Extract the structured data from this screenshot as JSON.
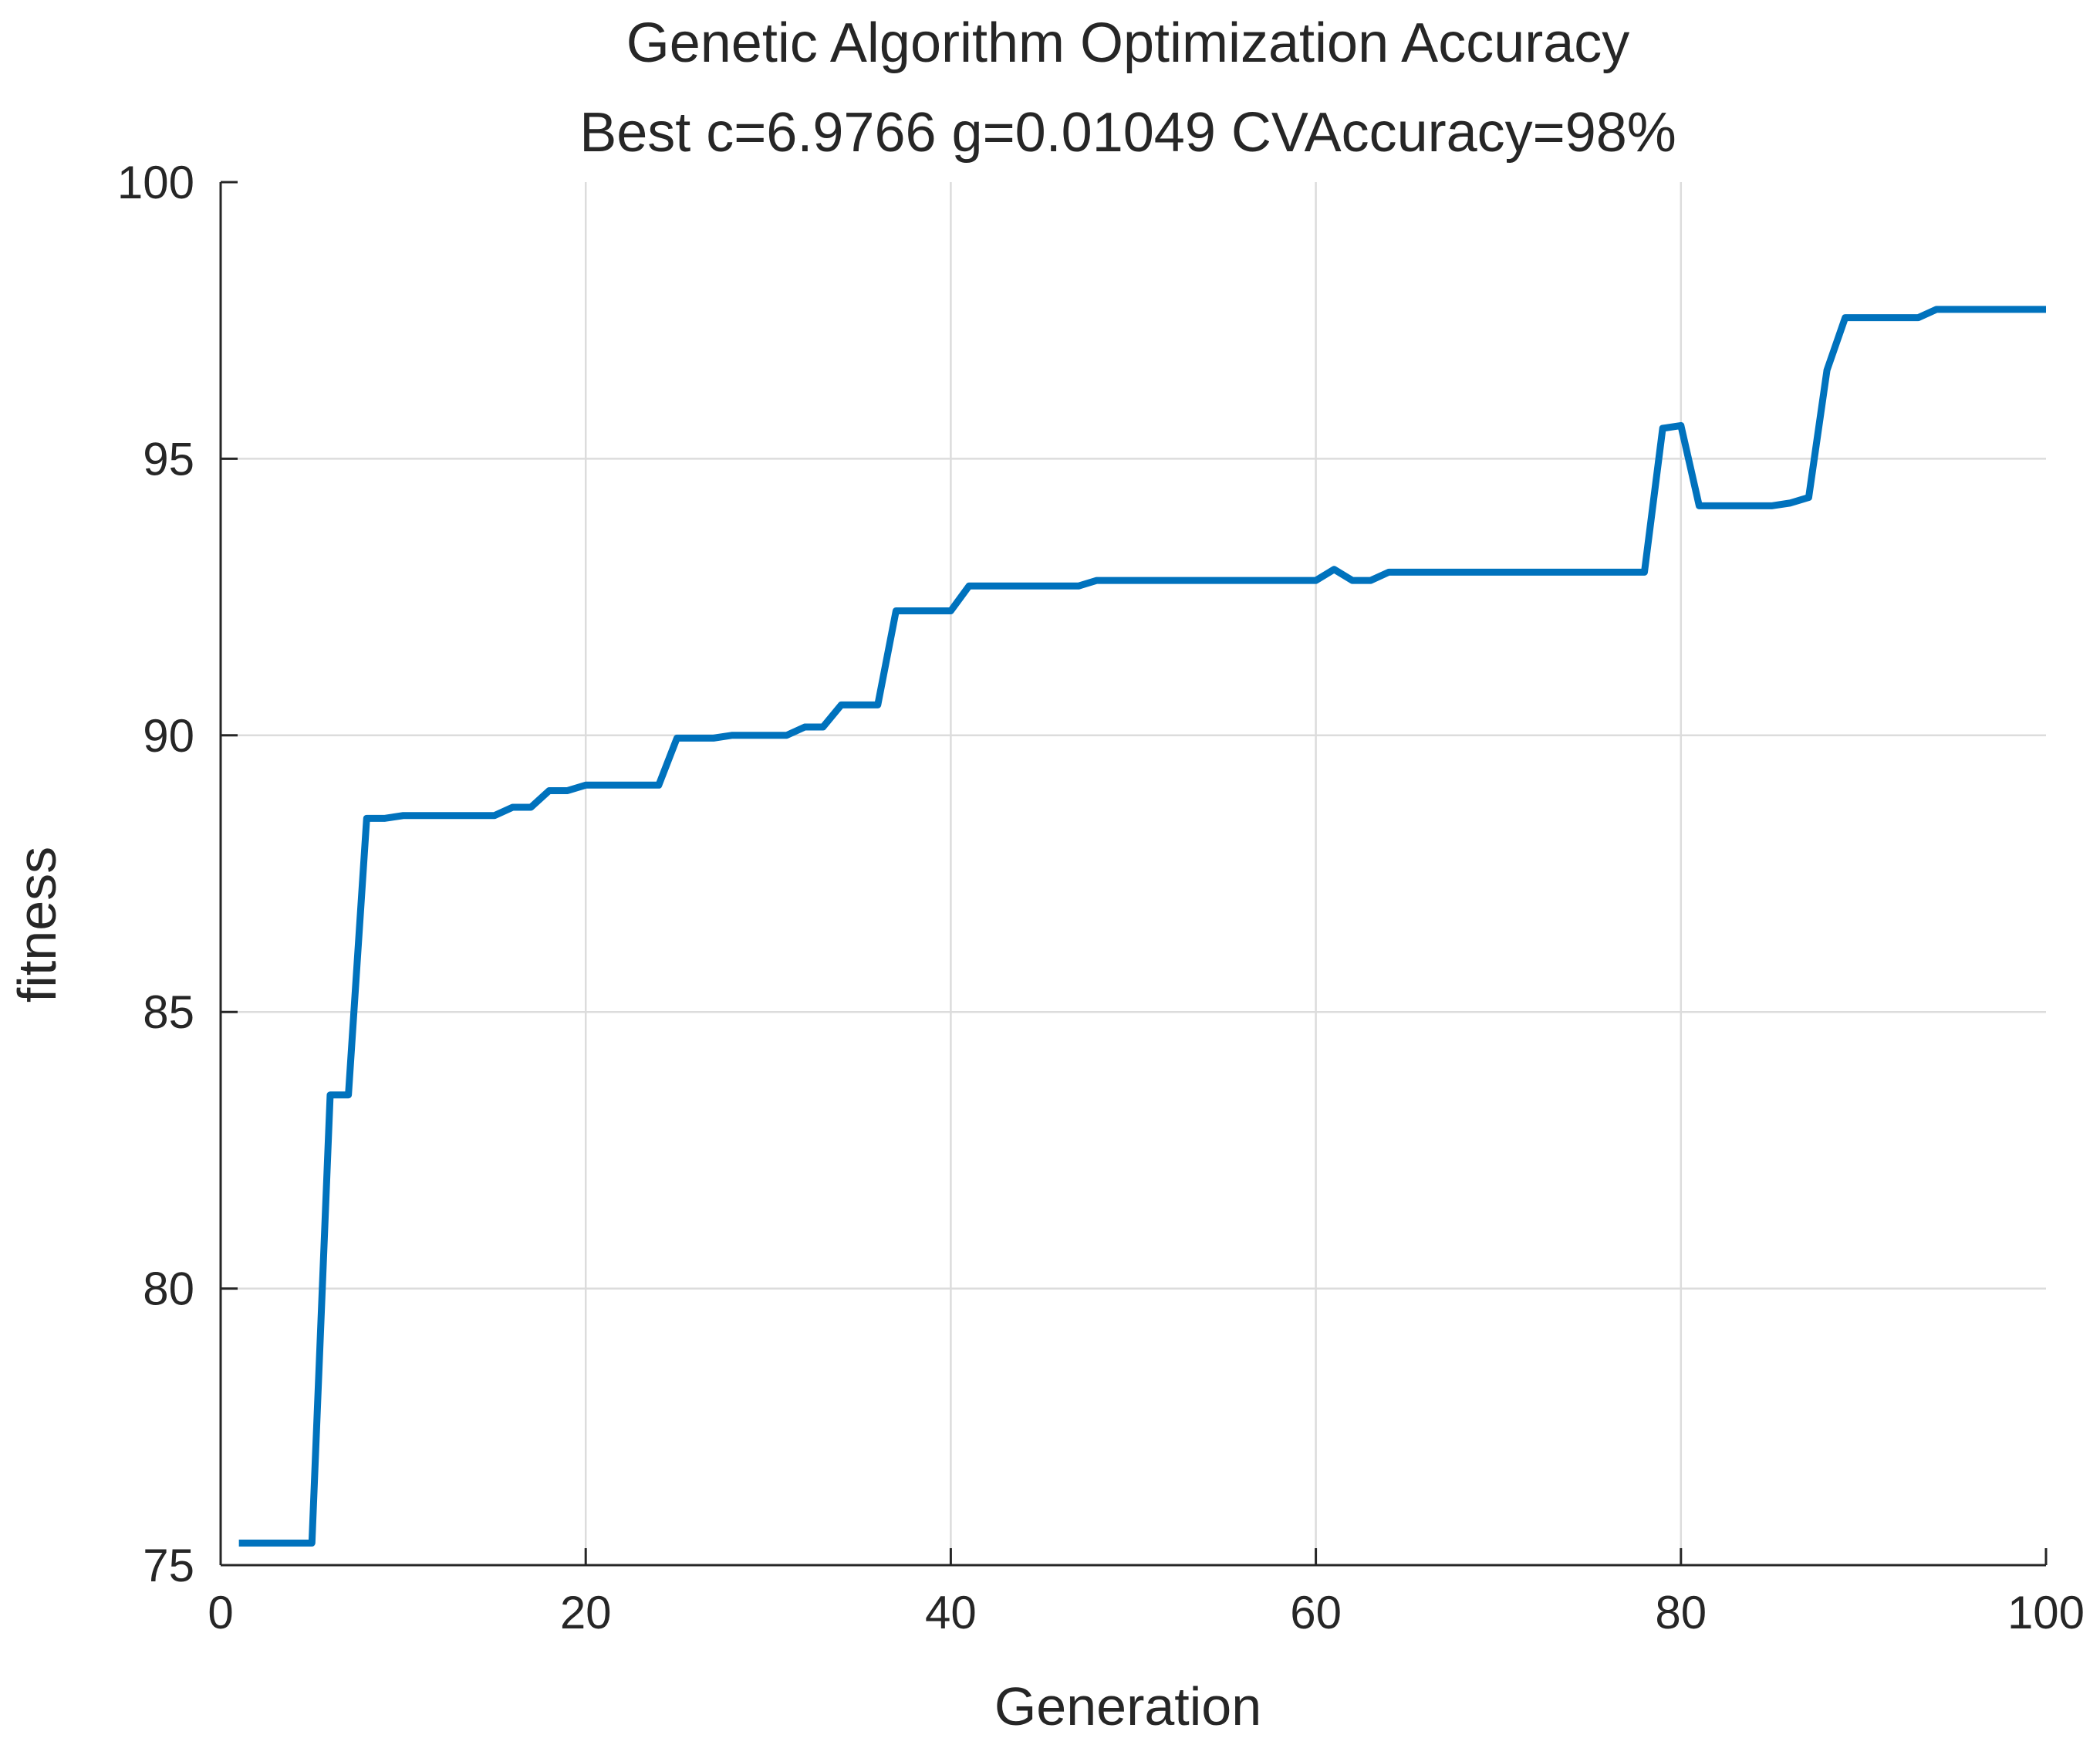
{
  "chart_data": {
    "type": "line",
    "title": "Genetic Algorithm Optimization Accuracy",
    "subtitle": "Best c=6.9766 g=0.01049 CVAccuracy=98%",
    "xlabel": "Generation",
    "ylabel": "fitness",
    "xlim": [
      0,
      100
    ],
    "ylim": [
      75,
      100
    ],
    "xticks": [
      0,
      20,
      40,
      60,
      80,
      100
    ],
    "yticks": [
      75,
      80,
      85,
      90,
      95,
      100
    ],
    "grid": true,
    "line_color": "#0072BD",
    "series": [
      {
        "name": "fitness",
        "x": [
          1,
          2,
          3,
          4,
          5,
          6,
          7,
          8,
          9,
          10,
          11,
          12,
          13,
          14,
          15,
          16,
          17,
          18,
          19,
          20,
          21,
          22,
          23,
          24,
          25,
          26,
          27,
          28,
          29,
          30,
          31,
          32,
          33,
          34,
          35,
          36,
          37,
          38,
          39,
          40,
          41,
          42,
          43,
          44,
          45,
          46,
          47,
          48,
          49,
          50,
          51,
          52,
          53,
          54,
          55,
          56,
          57,
          58,
          59,
          60,
          61,
          62,
          63,
          64,
          65,
          66,
          67,
          68,
          69,
          70,
          71,
          72,
          73,
          74,
          75,
          76,
          77,
          78,
          79,
          80,
          81,
          82,
          83,
          84,
          85,
          86,
          87,
          88,
          89,
          90,
          91,
          92,
          93,
          94,
          95,
          96,
          97,
          98,
          99,
          100
        ],
        "values": [
          75.4,
          75.4,
          75.4,
          75.4,
          75.4,
          83.5,
          83.5,
          88.5,
          88.5,
          88.55,
          88.55,
          88.55,
          88.55,
          88.55,
          88.55,
          88.7,
          88.7,
          89.0,
          89.0,
          89.1,
          89.1,
          89.1,
          89.1,
          89.1,
          89.95,
          89.95,
          89.95,
          90.0,
          90.0,
          90.0,
          90.0,
          90.15,
          90.15,
          90.55,
          90.55,
          90.55,
          92.25,
          92.25,
          92.25,
          92.25,
          92.7,
          92.7,
          92.7,
          92.7,
          92.7,
          92.7,
          92.7,
          92.8,
          92.8,
          92.8,
          92.8,
          92.8,
          92.8,
          92.8,
          92.8,
          92.8,
          92.8,
          92.8,
          92.8,
          92.8,
          93.0,
          92.8,
          92.8,
          92.95,
          92.95,
          92.95,
          92.95,
          92.95,
          92.95,
          92.95,
          92.95,
          92.95,
          92.95,
          92.95,
          92.95,
          92.95,
          92.95,
          92.95,
          95.55,
          95.6,
          94.15,
          94.15,
          94.15,
          94.15,
          94.15,
          94.2,
          94.3,
          96.6,
          97.55,
          97.55,
          97.55,
          97.55,
          97.55,
          97.7,
          97.7,
          97.7,
          97.7,
          97.7,
          97.7,
          97.7
        ]
      }
    ]
  }
}
